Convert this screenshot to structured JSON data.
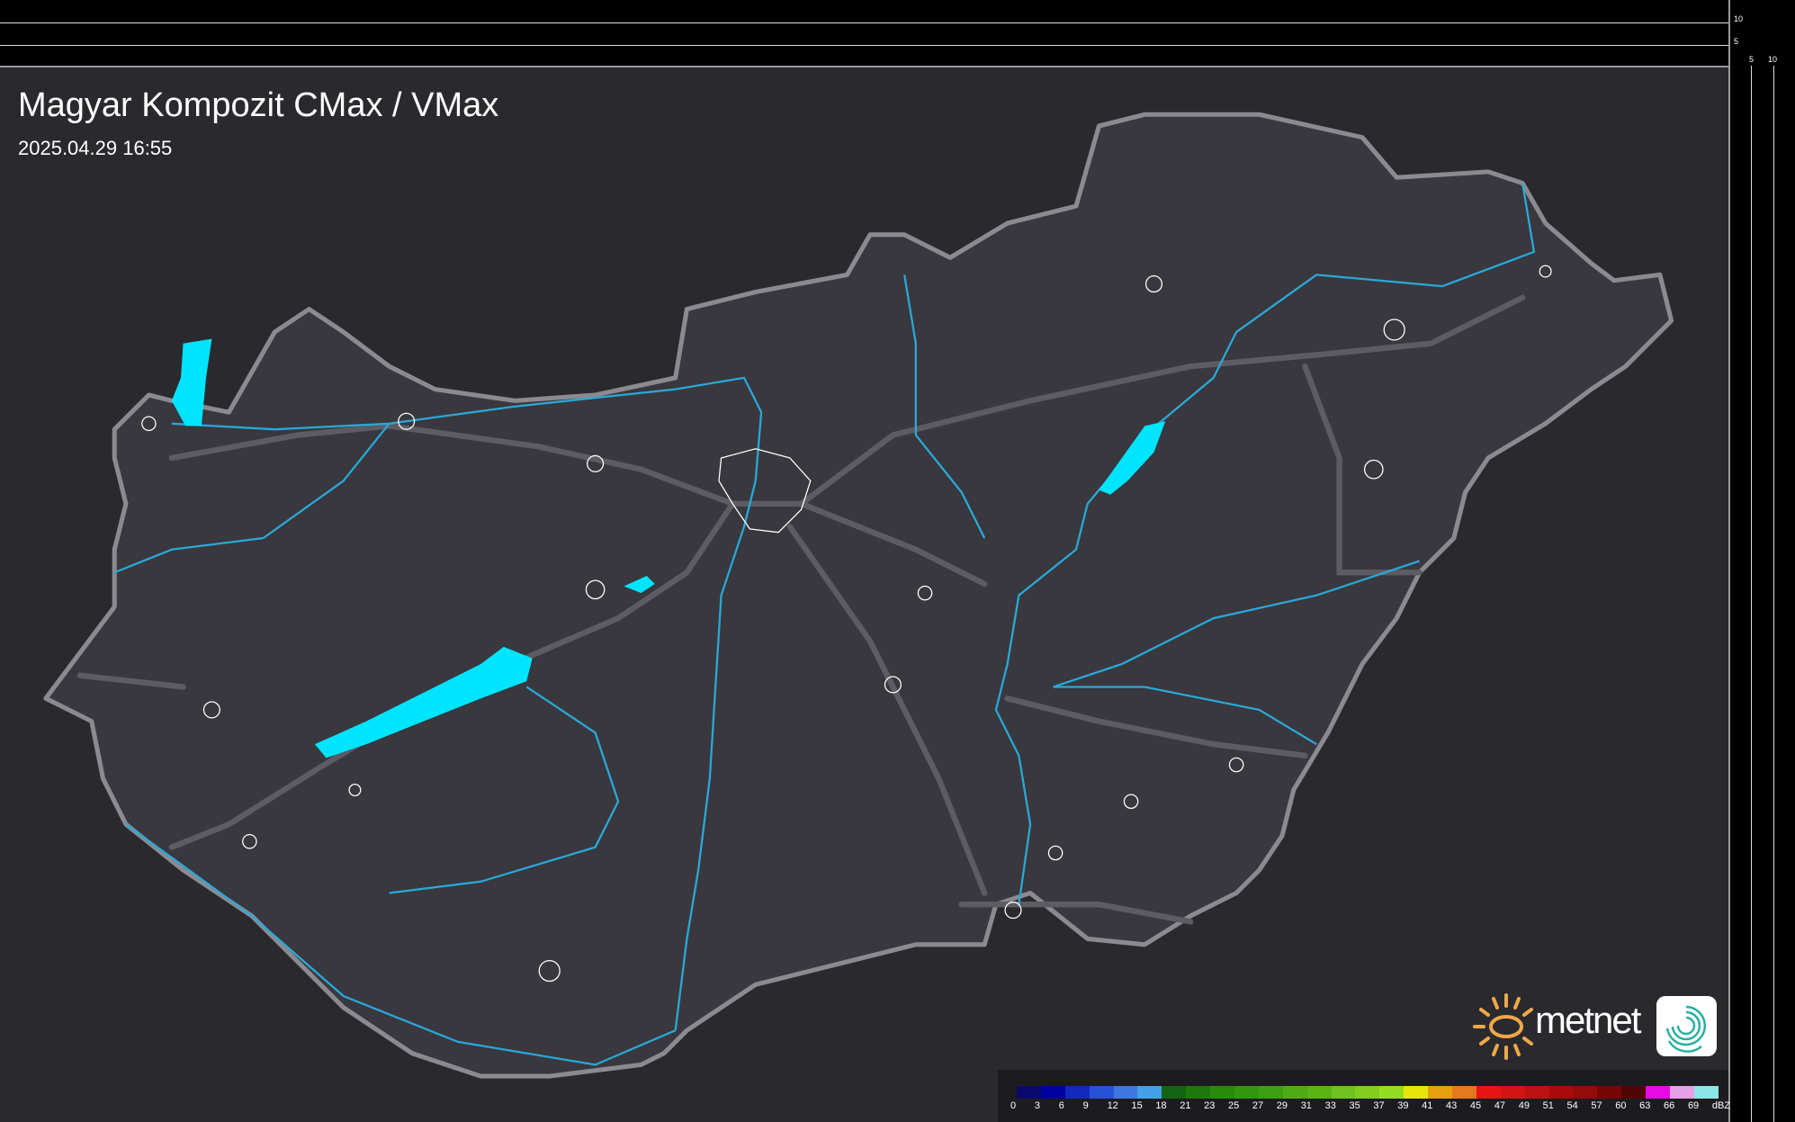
{
  "title": "Magyar Kompozit CMax / VMax",
  "timestamp": "2025.04.29 16:55",
  "scale_ticks": {
    "vertical": [
      "10",
      "5"
    ],
    "horizontal": [
      "5",
      "10"
    ]
  },
  "legend": {
    "unit": "dBZ",
    "labels": [
      "0",
      "3",
      "6",
      "9",
      "12",
      "15",
      "18",
      "21",
      "23",
      "25",
      "27",
      "29",
      "31",
      "33",
      "35",
      "37",
      "39",
      "41",
      "43",
      "45",
      "47",
      "49",
      "51",
      "54",
      "57",
      "60",
      "63",
      "66",
      "69"
    ],
    "colors": [
      "#0a0a6e",
      "#0000a0",
      "#1428c0",
      "#2850d8",
      "#3c78e0",
      "#46a0e6",
      "#146414",
      "#1e780a",
      "#288c0a",
      "#32960f",
      "#3ca014",
      "#50aa14",
      "#5ab414",
      "#6ec31e",
      "#82cd1e",
      "#96dc1e",
      "#e6e60a",
      "#e6a00a",
      "#e6781e",
      "#e61414",
      "#d21414",
      "#be1010",
      "#aa0a0a",
      "#960a0a",
      "#780505",
      "#500505",
      "#e60ae6",
      "#e6a0e6",
      "#8ce6e6"
    ]
  },
  "logo": {
    "text": "metnet"
  },
  "colors": {
    "background": "#2a2a2e",
    "country": "#38383e",
    "border": "#8a8a90",
    "water": "#00e5ff",
    "river": "#2aa8d8"
  }
}
